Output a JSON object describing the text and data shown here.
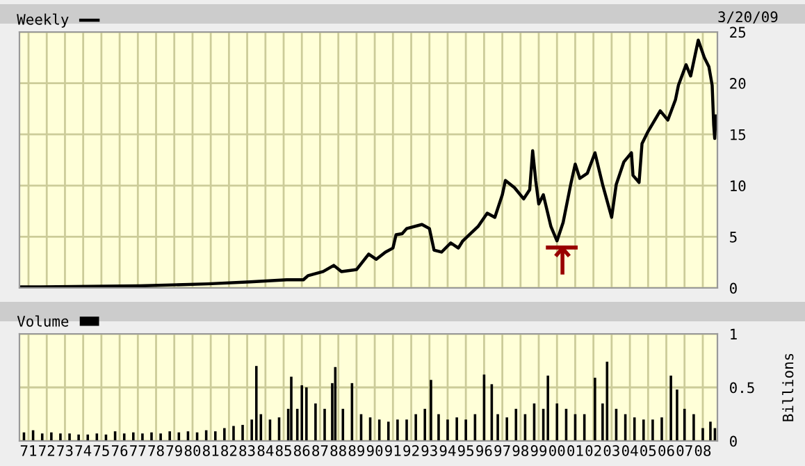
{
  "chart_data": [
    {
      "type": "line",
      "annotations": [
        "3/20/09"
      ],
      "legend": "top left",
      "grid": true,
      "tick_labels": "y",
      "xlim": [
        "1971-01-01",
        "2009-04-20"
      ],
      "ylim": [
        0,
        25
      ],
      "yticks": [
        0,
        5,
        10,
        15,
        20,
        25
      ],
      "xticks": [
        {
          "value": "1971-07",
          "label": null
        },
        {
          "value": "1972-07",
          "label": null
        },
        {
          "value": "1973-07",
          "label": null
        },
        {
          "value": "1974-07",
          "label": null
        },
        {
          "value": "1975-07",
          "label": null
        },
        {
          "value": "1976-07",
          "label": null
        },
        {
          "value": "1977-07",
          "label": null
        },
        {
          "value": "1978-07",
          "label": null
        },
        {
          "value": "1979-07",
          "label": null
        },
        {
          "value": "1980-07",
          "label": null
        },
        {
          "value": "1981-07",
          "label": null
        },
        {
          "value": "1982-07",
          "label": null
        },
        {
          "value": "1983-07",
          "label": null
        },
        {
          "value": "1984-07",
          "label": null
        },
        {
          "value": "1985-07",
          "label": null
        },
        {
          "value": "1986-07",
          "label": null
        },
        {
          "value": "1987-07",
          "label": null
        },
        {
          "value": "1988-07",
          "label": null
        },
        {
          "value": "1989-07",
          "label": null
        },
        {
          "value": "1990-07",
          "label": null
        },
        {
          "value": "1991-07",
          "label": null
        },
        {
          "value": "1992-07",
          "label": null
        },
        {
          "value": "1993-07",
          "label": null
        },
        {
          "value": "1994-07",
          "label": null
        },
        {
          "value": "1995-07",
          "label": null
        },
        {
          "value": "1996-07",
          "label": null
        },
        {
          "value": "1997-07",
          "label": null
        },
        {
          "value": "1998-07",
          "label": null
        },
        {
          "value": "1999-07",
          "label": null
        },
        {
          "value": "2000-07",
          "label": null
        },
        {
          "value": "2001-07",
          "label": null
        },
        {
          "value": "2002-07",
          "label": null
        },
        {
          "value": "2003-07",
          "label": null
        },
        {
          "value": "2004-07",
          "label": null
        },
        {
          "value": "2005-07",
          "label": null
        },
        {
          "value": "2006-07",
          "label": null
        },
        {
          "value": "2007-07",
          "label": null
        },
        {
          "value": "2008-07",
          "label": null
        }
      ],
      "series": [
        {
          "name": "Weekly",
          "color": "#000000",
          "x": [
            "1971-01",
            "1972-03",
            "1977-08",
            "1981-05",
            "1983-09",
            "1985-09",
            "1986-08",
            "1986-11",
            "1987-09",
            "1988-04",
            "1988-09",
            "1989-07",
            "1990-03",
            "1990-08",
            "1991-02",
            "1991-07",
            "1991-09",
            "1992-01",
            "1992-04",
            "1993-02",
            "1993-07",
            "1993-10",
            "1994-03",
            "1994-09",
            "1995-02",
            "1995-05",
            "1996-03",
            "1996-09",
            "1997-02",
            "1997-07",
            "1997-09",
            "1998-03",
            "1998-09",
            "1999-01",
            "1999-03",
            "1999-05",
            "1999-07",
            "1999-10",
            "2000-03",
            "2000-07",
            "2000-11",
            "2001-04",
            "2001-07",
            "2001-10",
            "2002-03",
            "2002-08",
            "2003-01",
            "2003-07",
            "2003-10",
            "2004-03",
            "2004-08",
            "2004-09",
            "2005-01",
            "2005-03",
            "2005-07",
            "2006-03",
            "2006-08",
            "2007-01",
            "2007-03",
            "2007-08",
            "2007-11",
            "2008-04",
            "2008-08",
            "2008-11",
            "2009-01-05",
            "2009-02-05",
            "2009-02-25",
            "2009-03-20"
          ],
          "values": [
            0.1,
            0.1,
            0.2,
            0.4,
            0.6,
            0.8,
            0.8,
            1.2,
            1.6,
            2.2,
            1.6,
            1.8,
            3.3,
            2.8,
            3.5,
            3.9,
            5.2,
            5.3,
            5.8,
            6.2,
            5.8,
            3.7,
            3.5,
            4.4,
            3.9,
            4.6,
            6.0,
            7.3,
            6.9,
            9.1,
            10.5,
            9.8,
            8.7,
            9.6,
            13.4,
            10.5,
            8.2,
            9.1,
            6.0,
            4.6,
            6.4,
            10.1,
            12.1,
            10.7,
            11.2,
            13.2,
            10.1,
            6.9,
            10.1,
            12.3,
            13.2,
            11.0,
            10.3,
            14.1,
            15.3,
            17.3,
            16.4,
            18.4,
            19.8,
            21.8,
            20.7,
            24.2,
            22.5,
            21.6,
            19.8,
            15.9,
            14.6,
            16.8
          ]
        }
      ]
    },
    {
      "type": "bar",
      "legend": "top left",
      "grid": true,
      "ylabel": "Billions",
      "xlim": [
        "1971-01-01",
        "2009-04-20"
      ],
      "ylim": [
        0,
        1
      ],
      "yticks": [
        0,
        0.5,
        1
      ],
      "xticks": [
        {
          "value": "1971-07",
          "label": "71"
        },
        {
          "value": "1972-07",
          "label": "72"
        },
        {
          "value": "1973-07",
          "label": "73"
        },
        {
          "value": "1974-07",
          "label": "74"
        },
        {
          "value": "1975-07",
          "label": "75"
        },
        {
          "value": "1976-07",
          "label": "76"
        },
        {
          "value": "1977-07",
          "label": "77"
        },
        {
          "value": "1978-07",
          "label": "78"
        },
        {
          "value": "1979-07",
          "label": "79"
        },
        {
          "value": "1980-07",
          "label": "80"
        },
        {
          "value": "1981-07",
          "label": "81"
        },
        {
          "value": "1982-07",
          "label": "82"
        },
        {
          "value": "1983-07",
          "label": "83"
        },
        {
          "value": "1984-07",
          "label": "84"
        },
        {
          "value": "1985-07",
          "label": "85"
        },
        {
          "value": "1986-07",
          "label": "86"
        },
        {
          "value": "1987-07",
          "label": "87"
        },
        {
          "value": "1988-07",
          "label": "88"
        },
        {
          "value": "1989-07",
          "label": "89"
        },
        {
          "value": "1990-07",
          "label": "90"
        },
        {
          "value": "1991-07",
          "label": "91"
        },
        {
          "value": "1992-07",
          "label": "92"
        },
        {
          "value": "1993-07",
          "label": "93"
        },
        {
          "value": "1994-07",
          "label": "94"
        },
        {
          "value": "1995-07",
          "label": "95"
        },
        {
          "value": "1996-07",
          "label": "96"
        },
        {
          "value": "1997-07",
          "label": "97"
        },
        {
          "value": "1998-07",
          "label": "98"
        },
        {
          "value": "1999-07",
          "label": "99"
        },
        {
          "value": "2000-07",
          "label": "00"
        },
        {
          "value": "2001-07",
          "label": "01"
        },
        {
          "value": "2002-07",
          "label": "02"
        },
        {
          "value": "2003-07",
          "label": "03"
        },
        {
          "value": "2004-07",
          "label": "04"
        },
        {
          "value": "2005-07",
          "label": "05"
        },
        {
          "value": "2006-07",
          "label": "06"
        },
        {
          "value": "2007-07",
          "label": "07"
        },
        {
          "value": "2008-07",
          "label": "08"
        }
      ],
      "series": [
        {
          "name": "Volume",
          "color": "#000000",
          "x": [
            "1971-04",
            "1971-10",
            "1972-04",
            "1972-10",
            "1973-04",
            "1973-10",
            "1974-04",
            "1974-10",
            "1975-04",
            "1975-10",
            "1976-04",
            "1976-10",
            "1977-04",
            "1977-10",
            "1978-04",
            "1978-10",
            "1979-04",
            "1979-10",
            "1980-04",
            "1980-10",
            "1981-04",
            "1981-10",
            "1982-04",
            "1982-10",
            "1983-04",
            "1983-10",
            "1984-01",
            "1984-04",
            "1984-10",
            "1985-04",
            "1985-10",
            "1985-12",
            "1986-04",
            "1986-07",
            "1986-10",
            "1987-04",
            "1987-10",
            "1988-03",
            "1988-05",
            "1988-10",
            "1989-04",
            "1989-10",
            "1990-04",
            "1990-10",
            "1991-04",
            "1991-10",
            "1992-04",
            "1992-10",
            "1993-04",
            "1993-08",
            "1994-01",
            "1994-07",
            "1995-01",
            "1995-07",
            "1996-01",
            "1996-07",
            "1996-12",
            "1997-04",
            "1997-10",
            "1998-04",
            "1998-10",
            "1999-04",
            "1999-10",
            "2000-01",
            "2000-07",
            "2001-01",
            "2001-07",
            "2002-01",
            "2002-08",
            "2003-01",
            "2003-04",
            "2003-10",
            "2004-04",
            "2004-10",
            "2005-04",
            "2005-10",
            "2006-04",
            "2006-10",
            "2007-02",
            "2007-07",
            "2008-01",
            "2008-07",
            "2008-12",
            "2009-03"
          ],
          "values": [
            0.08,
            0.1,
            0.07,
            0.08,
            0.07,
            0.07,
            0.06,
            0.06,
            0.07,
            0.06,
            0.09,
            0.07,
            0.08,
            0.07,
            0.08,
            0.07,
            0.09,
            0.08,
            0.09,
            0.08,
            0.1,
            0.09,
            0.12,
            0.14,
            0.15,
            0.2,
            0.7,
            0.25,
            0.2,
            0.22,
            0.3,
            0.6,
            0.3,
            0.52,
            0.5,
            0.35,
            0.3,
            0.54,
            0.69,
            0.3,
            0.54,
            0.25,
            0.22,
            0.2,
            0.18,
            0.2,
            0.2,
            0.25,
            0.3,
            0.57,
            0.25,
            0.2,
            0.22,
            0.2,
            0.25,
            0.62,
            0.53,
            0.25,
            0.22,
            0.3,
            0.25,
            0.35,
            0.3,
            0.61,
            0.35,
            0.3,
            0.25,
            0.25,
            0.59,
            0.35,
            0.74,
            0.3,
            0.25,
            0.22,
            0.2,
            0.2,
            0.22,
            0.61,
            0.48,
            0.3,
            0.25,
            0.12,
            0.18,
            0.12
          ]
        }
      ]
    }
  ]
}
